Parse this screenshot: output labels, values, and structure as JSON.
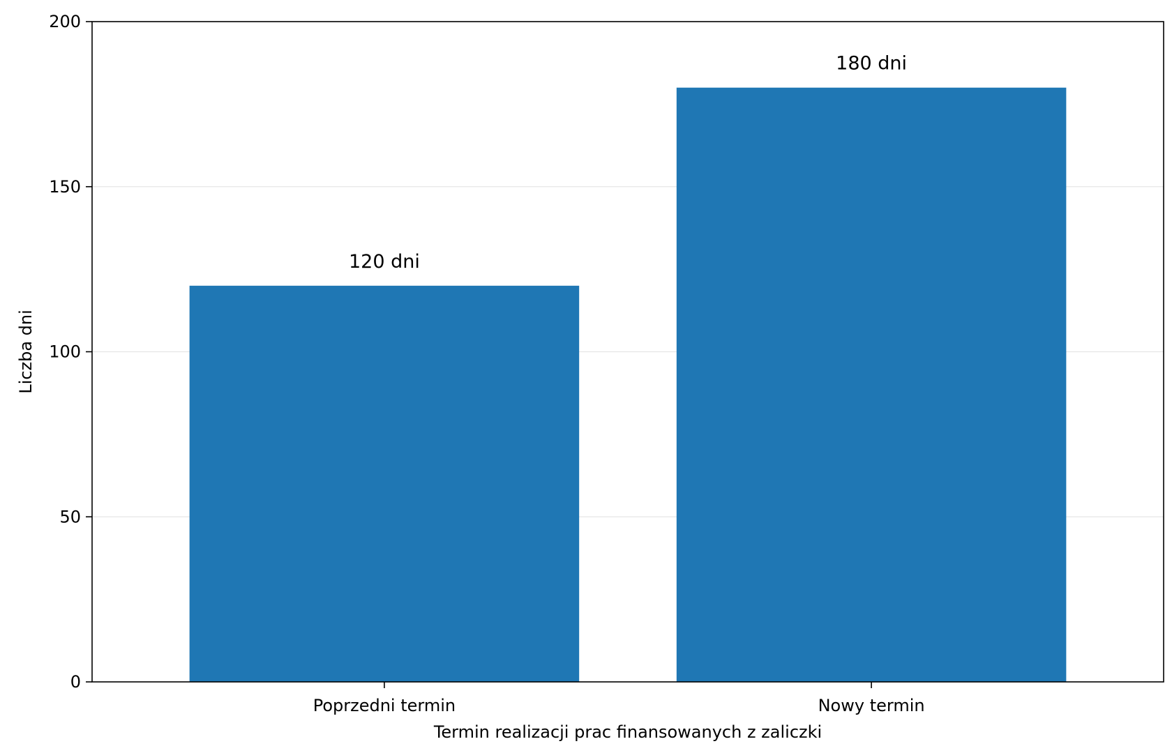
{
  "chart_data": {
    "type": "bar",
    "categories": [
      "Poprzedni termin",
      "Nowy termin"
    ],
    "values": [
      120,
      180
    ],
    "data_labels": [
      "120 dni",
      "180 dni"
    ],
    "title": "",
    "xlabel": "Termin realizacji prac finansowanych z zaliczki",
    "ylabel": "Liczba dni",
    "ylim": [
      0,
      200
    ],
    "yticks": [
      0,
      50,
      100,
      150,
      200
    ],
    "grid": "horizontal",
    "legend": "none",
    "bar_color": "#1f77b4",
    "grid_color": "#e6e6e6",
    "axis_color": "#000000"
  }
}
